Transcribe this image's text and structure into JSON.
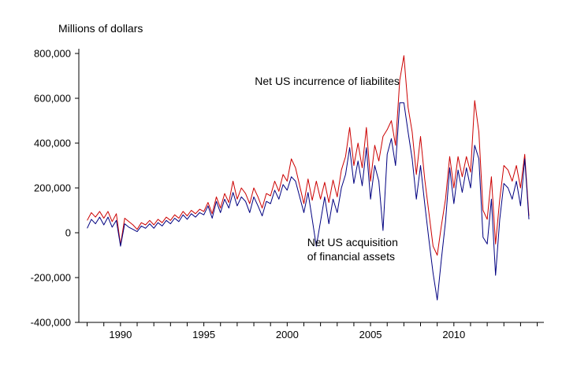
{
  "chart_data": {
    "type": "line",
    "title": "Millions of dollars",
    "x_unit": "year (quarterly observations)",
    "x_start": 1988.0,
    "x_step": 0.25,
    "xlim": [
      1987.5,
      2015.4
    ],
    "ylim": [
      -400000,
      800000
    ],
    "grid": false,
    "legend": "none (direct series annotations)",
    "yticks": [
      -400000,
      -200000,
      0,
      200000,
      400000,
      600000,
      800000
    ],
    "ytick_labels": [
      "-400,000",
      "-200,000",
      "0",
      "200,000",
      "400,000",
      "600,000",
      "800,000"
    ],
    "xtick_values": [
      1990,
      1995,
      2000,
      2005,
      2010
    ],
    "xticks_labeled": [
      "1990",
      "1995",
      "2000",
      "2005",
      "2010"
    ],
    "minor_xticks": {
      "start": 1988,
      "end": 2015,
      "step": 1
    },
    "series": [
      {
        "name": "Net US incurrence of liabilites",
        "color": "#cc0000",
        "values": [
          55000,
          90000,
          70000,
          95000,
          65000,
          95000,
          50000,
          85000,
          -55000,
          65000,
          50000,
          35000,
          15000,
          45000,
          35000,
          55000,
          35000,
          60000,
          45000,
          70000,
          55000,
          80000,
          65000,
          95000,
          75000,
          100000,
          85000,
          105000,
          95000,
          135000,
          85000,
          160000,
          110000,
          175000,
          135000,
          230000,
          150000,
          200000,
          175000,
          130000,
          200000,
          160000,
          110000,
          175000,
          165000,
          230000,
          185000,
          260000,
          230000,
          330000,
          290000,
          210000,
          130000,
          240000,
          145000,
          230000,
          150000,
          225000,
          135000,
          235000,
          160000,
          280000,
          340000,
          470000,
          300000,
          400000,
          290000,
          470000,
          230000,
          390000,
          320000,
          430000,
          460000,
          500000,
          390000,
          680000,
          790000,
          560000,
          450000,
          260000,
          430000,
          240000,
          90000,
          -60000,
          -100000,
          30000,
          150000,
          340000,
          200000,
          340000,
          250000,
          340000,
          270000,
          590000,
          450000,
          100000,
          60000,
          250000,
          -50000,
          150000,
          300000,
          280000,
          230000,
          300000,
          200000,
          350000,
          75000
        ]
      },
      {
        "name": "Net US acquisition of financial assets",
        "color": "#000080",
        "values": [
          20000,
          60000,
          40000,
          70000,
          35000,
          70000,
          25000,
          55000,
          -60000,
          40000,
          25000,
          15000,
          5000,
          30000,
          20000,
          40000,
          20000,
          45000,
          30000,
          55000,
          40000,
          65000,
          50000,
          80000,
          60000,
          85000,
          70000,
          90000,
          80000,
          120000,
          65000,
          140000,
          90000,
          150000,
          110000,
          180000,
          120000,
          160000,
          140000,
          90000,
          160000,
          120000,
          75000,
          140000,
          130000,
          190000,
          150000,
          215000,
          190000,
          250000,
          230000,
          160000,
          90000,
          180000,
          60000,
          -60000,
          50000,
          160000,
          40000,
          150000,
          90000,
          200000,
          260000,
          380000,
          220000,
          320000,
          210000,
          380000,
          150000,
          300000,
          230000,
          10000,
          350000,
          420000,
          300000,
          580000,
          580000,
          450000,
          330000,
          150000,
          300000,
          130000,
          -30000,
          -180000,
          -300000,
          -120000,
          50000,
          290000,
          130000,
          280000,
          180000,
          290000,
          200000,
          390000,
          330000,
          -20000,
          -50000,
          150000,
          -190000,
          60000,
          220000,
          200000,
          150000,
          230000,
          120000,
          330000,
          60000
        ]
      }
    ],
    "annotations": [
      {
        "text": "Net US incurrence of liabilites",
        "x": 2002.4,
        "y": 660000,
        "anchor": "middle",
        "font_size": 14
      },
      {
        "text": "Net US acquisition\nof financial assets",
        "x": 2001.2,
        "y": -60000,
        "anchor": "start",
        "font_size": 14
      }
    ],
    "colors": {
      "axis": "#000000",
      "background": "#ffffff",
      "text": "#000000"
    }
  }
}
